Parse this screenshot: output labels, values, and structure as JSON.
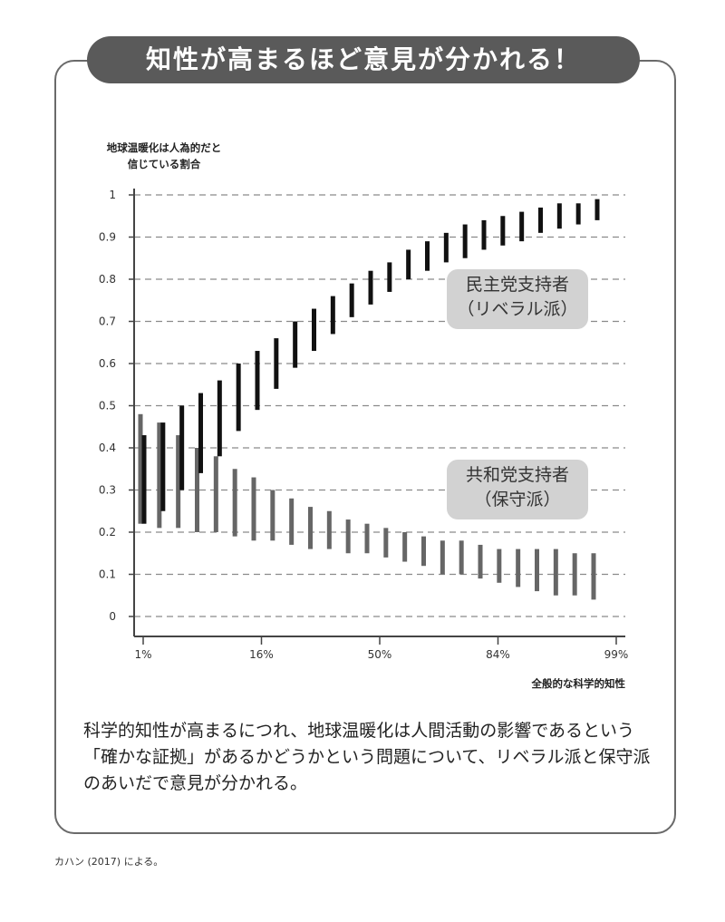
{
  "title": "知性が高まるほど意見が分かれる！",
  "caption": "科学的知性が高まるにつれ、地球温暖化は人間活動の影響であるという「確かな証拠」があるかどうかという問題について、リベラル派と保守派のあいだで意見が分かれる。",
  "source": "カハン (2017) による。",
  "chart_data": {
    "type": "range-bar",
    "ylabel_lines": [
      "地球温暖化は人為的だと",
      "信じている割合"
    ],
    "xlabel": "全般的な科学的知性",
    "ylim": [
      0,
      1
    ],
    "yticks": [
      "0",
      "0.1",
      "0.2",
      "0.3",
      "0.4",
      "0.5",
      "0.6",
      "0.7",
      "0.8",
      "0.9",
      "1"
    ],
    "xticks": [
      "1%",
      "16%",
      "50%",
      "84%",
      "99%"
    ],
    "grid": "horizontal-dashed",
    "series": [
      {
        "name": "共和党支持者（保守派）",
        "label_lines": [
          "共和党支持者",
          "（保守派）"
        ],
        "color": "#666666",
        "low": [
          0.22,
          0.21,
          0.21,
          0.2,
          0.2,
          0.19,
          0.18,
          0.18,
          0.17,
          0.16,
          0.16,
          0.15,
          0.15,
          0.14,
          0.13,
          0.12,
          0.1,
          0.1,
          0.09,
          0.08,
          0.07,
          0.06,
          0.05,
          0.05,
          0.04
        ],
        "high": [
          0.48,
          0.46,
          0.43,
          0.4,
          0.38,
          0.35,
          0.33,
          0.3,
          0.28,
          0.26,
          0.25,
          0.23,
          0.22,
          0.21,
          0.2,
          0.19,
          0.18,
          0.18,
          0.17,
          0.16,
          0.16,
          0.16,
          0.16,
          0.15,
          0.15
        ]
      },
      {
        "name": "民主党支持者（リベラル派）",
        "label_lines": [
          "民主党支持者",
          "（リベラル派）"
        ],
        "color": "#111111",
        "low": [
          0.22,
          0.25,
          0.3,
          0.34,
          0.38,
          0.44,
          0.49,
          0.54,
          0.59,
          0.63,
          0.67,
          0.71,
          0.74,
          0.77,
          0.8,
          0.82,
          0.84,
          0.85,
          0.87,
          0.88,
          0.89,
          0.91,
          0.92,
          0.93,
          0.94
        ],
        "high": [
          0.43,
          0.46,
          0.5,
          0.53,
          0.56,
          0.6,
          0.63,
          0.66,
          0.7,
          0.73,
          0.76,
          0.79,
          0.82,
          0.84,
          0.87,
          0.89,
          0.91,
          0.93,
          0.94,
          0.95,
          0.96,
          0.97,
          0.98,
          0.98,
          0.99
        ]
      }
    ]
  }
}
